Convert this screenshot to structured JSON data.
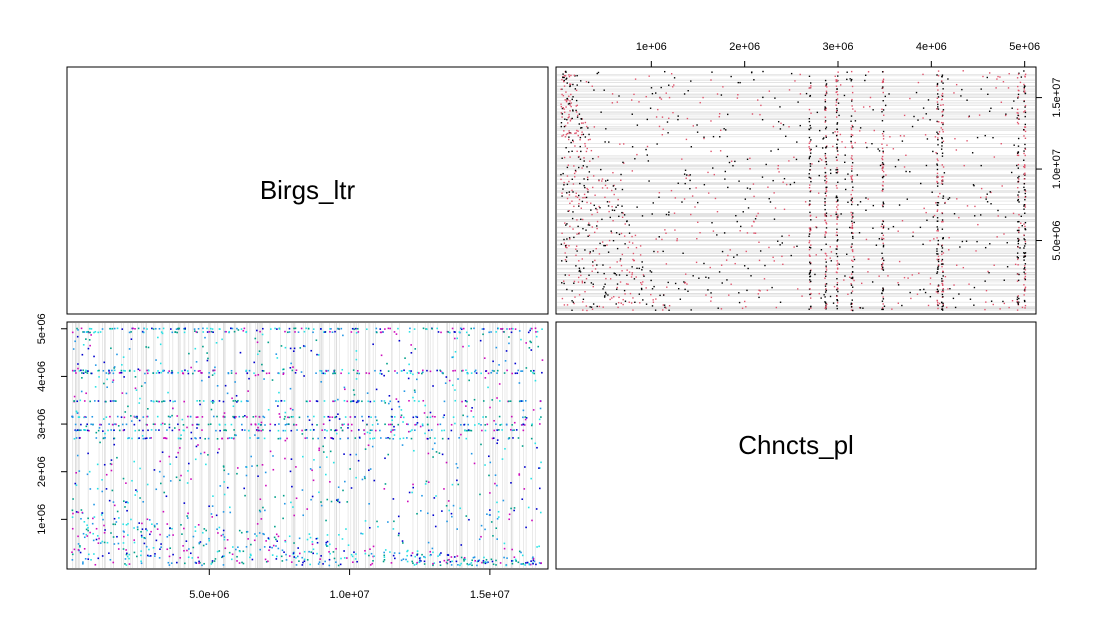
{
  "chart_data": {
    "type": "scatter",
    "layout": "2x2 scatterplot matrix",
    "variables": [
      "Birgs_ltr",
      "Chncts_pl"
    ],
    "x_axis_birgs_ticks": [
      "5.0e+06",
      "1.0e+07",
      "1.5e+07"
    ],
    "x_axis_birgs_values": [
      5000000,
      10000000,
      15000000
    ],
    "y_axis_chncts_ticks": [
      "1e+06",
      "2e+06",
      "3e+06",
      "4e+06",
      "5e+06"
    ],
    "y_axis_chncts_values": [
      1000000,
      2000000,
      3000000,
      4000000,
      5000000
    ],
    "top_axis_chncts_ticks": [
      "1e+06",
      "2e+06",
      "3e+06",
      "4e+06",
      "5e+06"
    ],
    "top_axis_chncts_values": [
      1000000,
      2000000,
      3000000,
      4000000,
      5000000
    ],
    "right_axis_birgs_ticks": [
      "5.0e+06",
      "1.0e+07",
      "1.5e+07"
    ],
    "right_axis_birgs_values": [
      5000000,
      10000000,
      15000000
    ],
    "birgs_range": [
      0,
      17000000
    ],
    "chncts_range": [
      0,
      5100000
    ],
    "upper_panel_colors": [
      "#000000",
      "#DF536B"
    ],
    "lower_panel_colors": [
      "#2297E6",
      "#28E2E5",
      "#CD0BBC",
      "#0000CD",
      "#00A08A"
    ],
    "chncts_dense_bands": [
      2700000,
      2870000,
      2990000,
      3150000,
      3480000,
      4070000,
      4120000,
      4930000,
      5000000
    ],
    "grid": "light gray lines per point"
  }
}
